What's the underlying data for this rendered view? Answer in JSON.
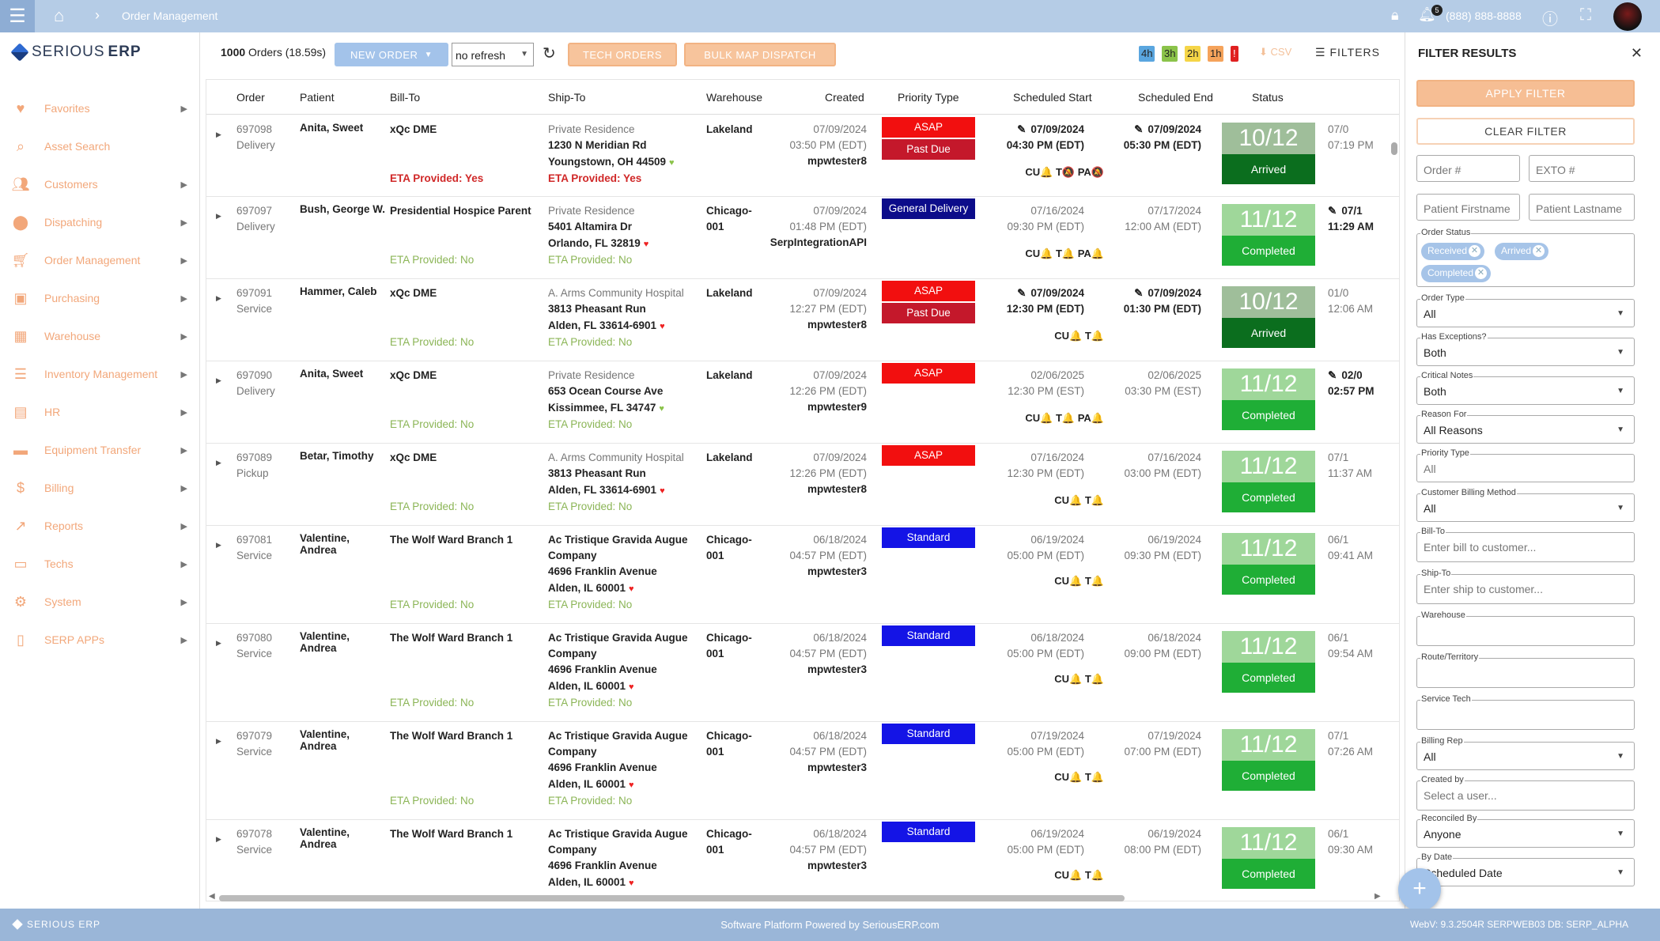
{
  "topbar": {
    "breadcrumb": "Order Management",
    "notifications": "5",
    "phone": "(888) 888-8888"
  },
  "brand": {
    "name_light": "SERIOUS",
    "name_bold": "ERP"
  },
  "sidebar": {
    "items": [
      {
        "label": "Favorites",
        "icon": "heart-icon",
        "arrow": true
      },
      {
        "label": "Asset Search",
        "icon": "search-icon",
        "arrow": false
      },
      {
        "label": "Customers",
        "icon": "users-icon",
        "arrow": true
      },
      {
        "label": "Dispatching",
        "icon": "pin-icon",
        "arrow": true
      },
      {
        "label": "Order Management",
        "icon": "cart-icon",
        "arrow": true
      },
      {
        "label": "Purchasing",
        "icon": "briefcase-icon",
        "arrow": true
      },
      {
        "label": "Warehouse",
        "icon": "building-icon",
        "arrow": true
      },
      {
        "label": "Inventory Management",
        "icon": "list-icon",
        "arrow": true
      },
      {
        "label": "HR",
        "icon": "folder-user-icon",
        "arrow": true
      },
      {
        "label": "Equipment Transfer",
        "icon": "truck-icon",
        "arrow": true
      },
      {
        "label": "Billing",
        "icon": "dollar-icon",
        "arrow": true
      },
      {
        "label": "Reports",
        "icon": "trend-icon",
        "arrow": true
      },
      {
        "label": "Techs",
        "icon": "laptop-icon",
        "arrow": true
      },
      {
        "label": "System",
        "icon": "gear-icon",
        "arrow": true
      },
      {
        "label": "SERP APPs",
        "icon": "phone-app-icon",
        "arrow": true
      }
    ]
  },
  "toolbar": {
    "orders_count": "1000",
    "orders_label": " Orders (18.59s)",
    "new_order": "NEW ORDER",
    "refresh_value": "no refresh",
    "tech_orders": "TECH ORDERS",
    "bulk_map": "BULK MAP DISPATCH",
    "badges": [
      {
        "label": "4h",
        "color": "#5aa6df"
      },
      {
        "label": "3h",
        "color": "#8bc34a"
      },
      {
        "label": "2h",
        "color": "#f5d547"
      },
      {
        "label": "1h",
        "color": "#f5a35b"
      },
      {
        "label": "!",
        "color": "#e02020"
      }
    ],
    "csv": "CSV",
    "filters": "FILTERS"
  },
  "table": {
    "headers": [
      "Order",
      "Patient",
      "Bill-To",
      "Ship-To",
      "Warehouse",
      "Created",
      "Priority Type",
      "Scheduled Start",
      "Scheduled End",
      "Status"
    ],
    "rows": [
      {
        "order": "697098",
        "type": "Delivery",
        "patient": "Anita, Sweet",
        "bill_to": "xQc DME",
        "eta_bill": "ETA Provided: Yes",
        "ship_name": "Private Residence",
        "addr1": "1230 N Meridian Rd",
        "addr2": "Youngstown, OH 44509",
        "eta_ship": "ETA Provided: Yes",
        "eta_yes": true,
        "warehouse": "Lakeland",
        "created_date": "07/09/2024",
        "created_time": "03:50 PM (EDT)",
        "created_by": "mpwtester8",
        "prio1": "ASAP",
        "prio1_color": "#f20f0f",
        "prio2": "Past Due",
        "prio2_color": "#c4182b",
        "start_date": "07/09/2024",
        "start_time": "04:30 PM (EDT)",
        "start_edit": true,
        "end_date": "07/09/2024",
        "end_time": "05:30 PM (EDT)",
        "end_edit": true,
        "flags": "CU🔔 T🔕 PA🔕",
        "status_big": "10/12",
        "status_big_color": "#9fbe9a",
        "status_label": "Arrived",
        "status_color": "#0b6e1e",
        "extra_date": "07/0",
        "extra_time": "07:19 PM",
        "extra_edit": false
      },
      {
        "order": "697097",
        "type": "Delivery",
        "patient": "Bush, George W.",
        "bill_to": "Presidential Hospice Parent",
        "eta_bill": "ETA Provided: No",
        "ship_name": "Private Residence",
        "addr1": "5401 Altamira Dr",
        "addr2": "Orlando, FL 32819",
        "eta_ship": "ETA Provided: No",
        "eta_yes": false,
        "warehouse": "Chicago-001",
        "created_date": "07/09/2024",
        "created_time": "01:48 PM (EDT)",
        "created_by": "SerpIntegrationAPI",
        "prio1": "General Delivery",
        "prio1_color": "#0c0c8a",
        "prio2": "",
        "prio2_color": "",
        "start_date": "07/16/2024",
        "start_time": "09:30 PM (EDT)",
        "start_edit": false,
        "end_date": "07/17/2024",
        "end_time": "12:00 AM (EDT)",
        "end_edit": false,
        "flags": "CU🔔 T🔔 PA🔔",
        "status_big": "11/12",
        "status_big_color": "#9fd79a",
        "status_label": "Completed",
        "status_color": "#1fae36",
        "extra_date": "07/1",
        "extra_time": "11:29 AM",
        "extra_edit": true
      },
      {
        "order": "697091",
        "type": "Service",
        "patient": "Hammer, Caleb",
        "bill_to": "xQc DME",
        "eta_bill": "ETA Provided: No",
        "ship_name": "A. Arms Community Hospital",
        "addr1": "3813 Pheasant Run",
        "addr2": "Alden, FL 33614-6901",
        "eta_ship": "ETA Provided: No",
        "eta_yes": false,
        "warehouse": "Lakeland",
        "created_date": "07/09/2024",
        "created_time": "12:27 PM (EDT)",
        "created_by": "mpwtester8",
        "prio1": "ASAP",
        "prio1_color": "#f20f0f",
        "prio2": "Past Due",
        "prio2_color": "#c4182b",
        "start_date": "07/09/2024",
        "start_time": "12:30 PM (EDT)",
        "start_edit": true,
        "end_date": "07/09/2024",
        "end_time": "01:30 PM (EDT)",
        "end_edit": true,
        "flags": "CU🔔 T🔔",
        "status_big": "10/12",
        "status_big_color": "#9fbe9a",
        "status_label": "Arrived",
        "status_color": "#0b6e1e",
        "extra_date": "01/0",
        "extra_time": "12:06 AM",
        "extra_edit": false
      },
      {
        "order": "697090",
        "type": "Delivery",
        "patient": "Anita, Sweet",
        "bill_to": "xQc DME",
        "eta_bill": "ETA Provided: No",
        "ship_name": "Private Residence",
        "addr1": "653 Ocean Course Ave",
        "addr2": "Kissimmee, FL 34747",
        "eta_ship": "ETA Provided: No",
        "eta_yes": false,
        "warehouse": "Lakeland",
        "created_date": "07/09/2024",
        "created_time": "12:26 PM (EDT)",
        "created_by": "mpwtester9",
        "prio1": "ASAP",
        "prio1_color": "#f20f0f",
        "prio2": "",
        "prio2_color": "",
        "start_date": "02/06/2025",
        "start_time": "12:30 PM (EST)",
        "start_edit": false,
        "end_date": "02/06/2025",
        "end_time": "03:30 PM (EST)",
        "end_edit": false,
        "flags": "CU🔔 T🔔 PA🔔",
        "status_big": "11/12",
        "status_big_color": "#9fd79a",
        "status_label": "Completed",
        "status_color": "#1fae36",
        "extra_date": "02/0",
        "extra_time": "02:57 PM",
        "extra_edit": true
      },
      {
        "order": "697089",
        "type": "Pickup",
        "patient": "Betar, Timothy",
        "bill_to": "xQc DME",
        "eta_bill": "ETA Provided: No",
        "ship_name": "A. Arms Community Hospital",
        "addr1": "3813 Pheasant Run",
        "addr2": "Alden, FL 33614-6901",
        "eta_ship": "ETA Provided: No",
        "eta_yes": false,
        "warehouse": "Lakeland",
        "created_date": "07/09/2024",
        "created_time": "12:26 PM (EDT)",
        "created_by": "mpwtester8",
        "prio1": "ASAP",
        "prio1_color": "#f20f0f",
        "prio2": "",
        "prio2_color": "",
        "start_date": "07/16/2024",
        "start_time": "12:30 PM (EDT)",
        "start_edit": false,
        "end_date": "07/16/2024",
        "end_time": "03:00 PM (EDT)",
        "end_edit": false,
        "flags": "CU🔔 T🔔",
        "status_big": "11/12",
        "status_big_color": "#9fd79a",
        "status_label": "Completed",
        "status_color": "#1fae36",
        "extra_date": "07/1",
        "extra_time": "11:37 AM",
        "extra_edit": false
      },
      {
        "order": "697081",
        "type": "Service",
        "patient": "Valentine, Andrea",
        "bill_to": "The Wolf Ward Branch 1",
        "eta_bill": "ETA Provided: No",
        "ship_name": "Ac Tristique Gravida Augue Company",
        "addr1": "4696 Franklin Avenue",
        "addr2": "Alden, IL 60001",
        "eta_ship": "ETA Provided: No",
        "eta_yes": false,
        "warehouse": "Chicago-001",
        "created_date": "06/18/2024",
        "created_time": "04:57 PM (EDT)",
        "created_by": "mpwtester3",
        "prio1": "Standard",
        "prio1_color": "#1414e6",
        "prio2": "",
        "prio2_color": "",
        "start_date": "06/19/2024",
        "start_time": "05:00 PM (EDT)",
        "start_edit": false,
        "end_date": "06/19/2024",
        "end_time": "09:30 PM (EDT)",
        "end_edit": false,
        "flags": "CU🔔 T🔔",
        "status_big": "11/12",
        "status_big_color": "#9fd79a",
        "status_label": "Completed",
        "status_color": "#1fae36",
        "extra_date": "06/1",
        "extra_time": "09:41 AM",
        "extra_edit": false
      },
      {
        "order": "697080",
        "type": "Service",
        "patient": "Valentine, Andrea",
        "bill_to": "The Wolf Ward Branch 1",
        "eta_bill": "ETA Provided: No",
        "ship_name": "Ac Tristique Gravida Augue Company",
        "addr1": "4696 Franklin Avenue",
        "addr2": "Alden, IL 60001",
        "eta_ship": "ETA Provided: No",
        "eta_yes": false,
        "warehouse": "Chicago-001",
        "created_date": "06/18/2024",
        "created_time": "04:57 PM (EDT)",
        "created_by": "mpwtester3",
        "prio1": "Standard",
        "prio1_color": "#1414e6",
        "prio2": "",
        "prio2_color": "",
        "start_date": "06/18/2024",
        "start_time": "05:00 PM (EDT)",
        "start_edit": false,
        "end_date": "06/18/2024",
        "end_time": "09:00 PM (EDT)",
        "end_edit": false,
        "flags": "CU🔔 T🔔",
        "status_big": "11/12",
        "status_big_color": "#9fd79a",
        "status_label": "Completed",
        "status_color": "#1fae36",
        "extra_date": "06/1",
        "extra_time": "09:54 AM",
        "extra_edit": false
      },
      {
        "order": "697079",
        "type": "Service",
        "patient": "Valentine, Andrea",
        "bill_to": "The Wolf Ward Branch 1",
        "eta_bill": "ETA Provided: No",
        "ship_name": "Ac Tristique Gravida Augue Company",
        "addr1": "4696 Franklin Avenue",
        "addr2": "Alden, IL 60001",
        "eta_ship": "ETA Provided: No",
        "eta_yes": false,
        "warehouse": "Chicago-001",
        "created_date": "06/18/2024",
        "created_time": "04:57 PM (EDT)",
        "created_by": "mpwtester3",
        "prio1": "Standard",
        "prio1_color": "#1414e6",
        "prio2": "",
        "prio2_color": "",
        "start_date": "07/19/2024",
        "start_time": "05:00 PM (EDT)",
        "start_edit": false,
        "end_date": "07/19/2024",
        "end_time": "07:00 PM (EDT)",
        "end_edit": false,
        "flags": "CU🔔 T🔔",
        "status_big": "11/12",
        "status_big_color": "#9fd79a",
        "status_label": "Completed",
        "status_color": "#1fae36",
        "extra_date": "07/1",
        "extra_time": "07:26 AM",
        "extra_edit": false
      },
      {
        "order": "697078",
        "type": "Service",
        "patient": "Valentine, Andrea",
        "bill_to": "The Wolf Ward Branch 1",
        "eta_bill": "",
        "ship_name": "Ac Tristique Gravida Augue Company",
        "addr1": "4696 Franklin Avenue",
        "addr2": "Alden, IL 60001",
        "eta_ship": "",
        "eta_yes": false,
        "warehouse": "Chicago-001",
        "created_date": "06/18/2024",
        "created_time": "04:57 PM (EDT)",
        "created_by": "mpwtester3",
        "prio1": "Standard",
        "prio1_color": "#1414e6",
        "prio2": "",
        "prio2_color": "",
        "start_date": "06/19/2024",
        "start_time": "05:00 PM (EDT)",
        "start_edit": false,
        "end_date": "06/19/2024",
        "end_time": "08:00 PM (EDT)",
        "end_edit": false,
        "flags": "CU🔔 T🔔",
        "status_big": "11/12",
        "status_big_color": "#9fd79a",
        "status_label": "Completed",
        "status_color": "#1fae36",
        "extra_date": "06/1",
        "extra_time": "09:30 AM",
        "extra_edit": false
      }
    ]
  },
  "filter_panel": {
    "title": "FILTER RESULTS",
    "apply": "APPLY FILTER",
    "clear": "CLEAR FILTER",
    "order_ph": "Order #",
    "exto_ph": "EXTO #",
    "first_ph": "Patient Firstname",
    "last_ph": "Patient Lastname",
    "order_status_label": "Order Status",
    "order_status_chips": [
      "Received",
      "Arrived",
      "Completed"
    ],
    "order_type": {
      "label": "Order Type",
      "value": "All"
    },
    "has_exceptions": {
      "label": "Has Exceptions?",
      "value": "Both"
    },
    "critical_notes": {
      "label": "Critical Notes",
      "value": "Both"
    },
    "reason_for": {
      "label": "Reason For",
      "value": "All Reasons"
    },
    "priority_type": {
      "label": "Priority Type",
      "value": "All"
    },
    "billing_method": {
      "label": "Customer Billing Method",
      "value": "All"
    },
    "bill_to": {
      "label": "Bill-To",
      "placeholder": "Enter bill to customer..."
    },
    "ship_to": {
      "label": "Ship-To",
      "placeholder": "Enter ship to customer..."
    },
    "warehouse": {
      "label": "Warehouse"
    },
    "route": {
      "label": "Route/Territory"
    },
    "service_tech": {
      "label": "Service Tech"
    },
    "billing_rep": {
      "label": "Billing Rep",
      "value": "All"
    },
    "created_by": {
      "label": "Created by",
      "placeholder": "Select a user..."
    },
    "reconciled_by": {
      "label": "Reconciled By",
      "value": "Anyone"
    },
    "by_date": {
      "label": "By Date",
      "value": "Scheduled Date"
    }
  },
  "footer": {
    "left": "SERIOUS ERP",
    "center": "Software Platform Powered by SeriousERP.com",
    "right": "WebV: 9.3.2504R SERPWEB03 DB: SERP_ALPHA"
  }
}
